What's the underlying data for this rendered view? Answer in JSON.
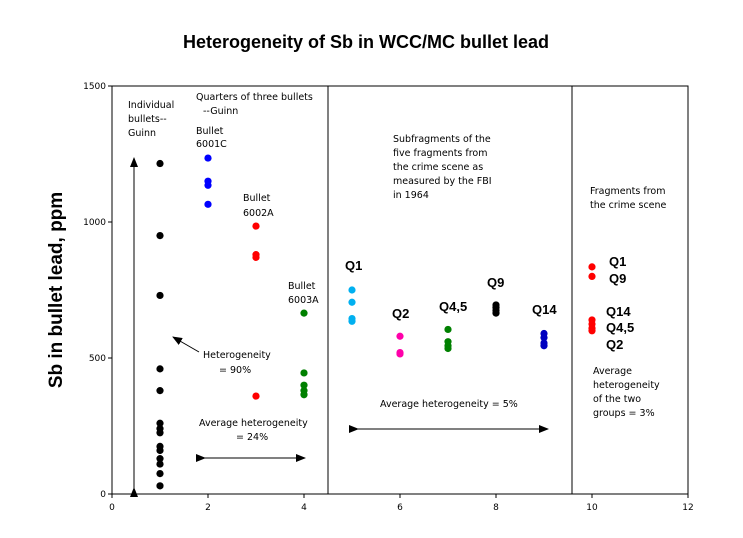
{
  "chart_data": {
    "type": "scatter",
    "title": "Heterogeneity of Sb in WCC/MC bullet lead",
    "xlabel": "",
    "ylabel": "Sb in bullet lead, ppm",
    "xlim": [
      0,
      12
    ],
    "ylim": [
      0,
      1500
    ],
    "xticks": [
      0,
      2,
      4,
      6,
      8,
      10,
      12
    ],
    "yticks": [
      0,
      500,
      1000,
      1500
    ],
    "grid": false,
    "dividers_x": [
      4.5,
      9.6
    ],
    "series": [
      {
        "color": "#000000",
        "x": [
          1,
          1,
          1,
          1,
          1,
          1,
          1,
          1,
          1,
          1,
          1,
          1,
          1,
          1
        ],
        "y": [
          1215,
          950,
          730,
          460,
          380,
          260,
          240,
          225,
          175,
          160,
          130,
          110,
          75,
          30
        ]
      },
      {
        "color": "#0000ff",
        "x": [
          2,
          2,
          2,
          2
        ],
        "y": [
          1235,
          1150,
          1135,
          1065
        ]
      },
      {
        "color": "#ff0000",
        "x": [
          3,
          3,
          3,
          3
        ],
        "y": [
          985,
          880,
          870,
          360
        ]
      },
      {
        "color": "#008000",
        "x": [
          4,
          4,
          4,
          4,
          4
        ],
        "y": [
          665,
          445,
          400,
          380,
          365
        ]
      },
      {
        "color": "#00b0f0",
        "x": [
          5,
          5,
          5,
          5
        ],
        "y": [
          750,
          705,
          645,
          635
        ]
      },
      {
        "color": "#ff00aa",
        "x": [
          6,
          6,
          6
        ],
        "y": [
          580,
          520,
          515
        ]
      },
      {
        "color": "#008000",
        "x": [
          7,
          7,
          7,
          7
        ],
        "y": [
          605,
          560,
          545,
          535
        ]
      },
      {
        "color": "#000000",
        "x": [
          8,
          8,
          8,
          8
        ],
        "y": [
          695,
          685,
          675,
          665
        ]
      },
      {
        "color": "#0000c0",
        "x": [
          9,
          9,
          9,
          9
        ],
        "y": [
          590,
          575,
          555,
          545
        ]
      },
      {
        "color": "#ff0000",
        "x": [
          10,
          10,
          10,
          10,
          10,
          10
        ],
        "y": [
          835,
          800,
          640,
          625,
          610,
          600
        ]
      }
    ],
    "annotations": {
      "individual": [
        "Individual",
        "bullets--",
        "Guinn"
      ],
      "quarters": [
        "Quarters of three bullets",
        "--Guinn"
      ],
      "bullet1": [
        "Bullet",
        "6001C"
      ],
      "bullet2": [
        "Bullet",
        "6002A"
      ],
      "bullet3": [
        "Bullet",
        "6003A"
      ],
      "subfrag": [
        "Subfragments of the",
        "five fragments from",
        "the crime scene as",
        "measured by the FBI",
        "in 1964"
      ],
      "fragments": [
        "Fragments from",
        "the crime scene"
      ],
      "hetero90": [
        "Heterogeneity",
        "= 90%"
      ],
      "avg24": [
        "Average heterogeneity",
        "= 24%"
      ],
      "avg5": "Average heterogeneity = 5%",
      "avg3": [
        "Average",
        "heterogeneity",
        "of the two",
        "groups = 3%"
      ],
      "q1": "Q1",
      "q2": "Q2",
      "q45": "Q4,5",
      "q9": "Q9",
      "q14": "Q14",
      "r_q1": "Q1",
      "r_q9": "Q9",
      "r_q14": "Q14",
      "r_q45": "Q4,5",
      "r_q2": "Q2"
    }
  }
}
